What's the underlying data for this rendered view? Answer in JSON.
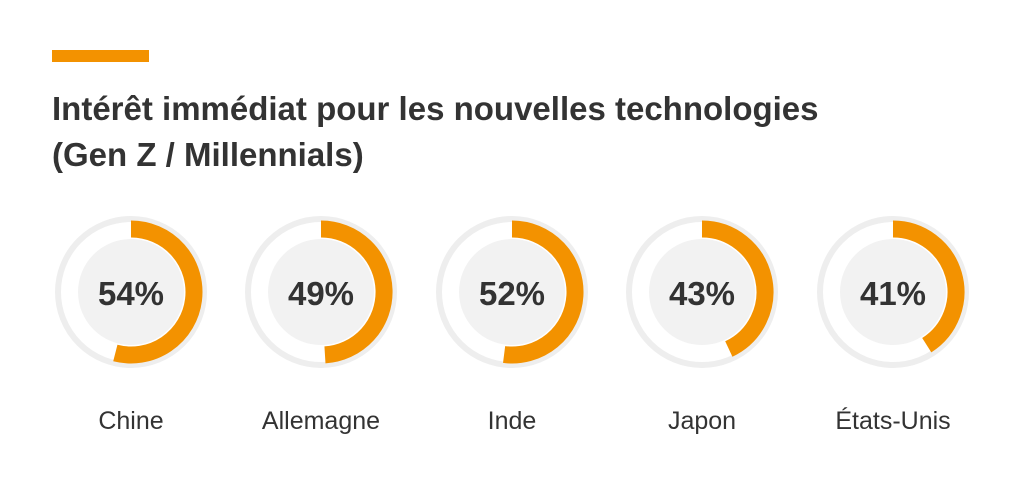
{
  "title_lines": [
    "Intérêt immédiat pour les nouvelles technologies",
    "(Gen Z / Millennials)"
  ],
  "colors": {
    "accent": "#f39200",
    "ring_track": "#eeeeee",
    "inner_disc": "#f2f2f2",
    "text": "#333333"
  },
  "chart_data": {
    "type": "pie",
    "variant": "donut",
    "categories": [
      "Chine",
      "Allemagne",
      "Inde",
      "Japon",
      "États-Unis"
    ],
    "values": [
      54,
      49,
      52,
      43,
      41
    ],
    "value_labels": [
      "54%",
      "49%",
      "52%",
      "43%",
      "41%"
    ],
    "unit": "%",
    "max": 100
  }
}
